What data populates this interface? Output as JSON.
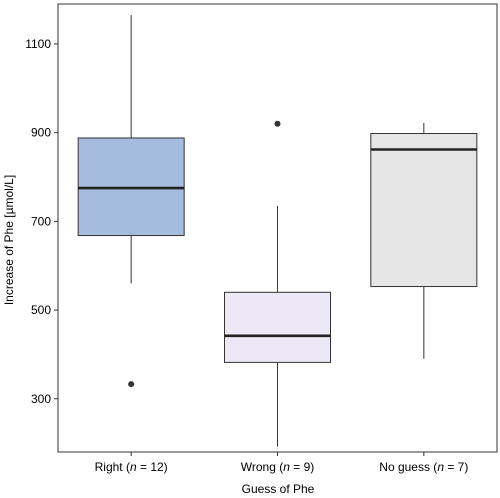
{
  "chart_data": {
    "type": "boxplot",
    "xlabel": "Guess of Phe",
    "ylabel": "Increase of Phe [µmol/L]",
    "ylim": [
      180,
      1190
    ],
    "yticks": [
      300,
      500,
      700,
      900,
      1100
    ],
    "grid": false,
    "categories": [
      {
        "name": "Right",
        "n_label": "n",
        "n_value": "= 12",
        "n": 12,
        "color": "#a5bcdf",
        "whisker_low": 560,
        "q1": 668,
        "median": 775,
        "q3": 888,
        "whisker_high": 1165,
        "outliers": [
          333
        ]
      },
      {
        "name": "Wrong",
        "n_label": "n",
        "n_value": "= 9",
        "n": 9,
        "color": "#ede8f5",
        "whisker_low": 192,
        "q1": 382,
        "median": 442,
        "q3": 540,
        "whisker_high": 735,
        "outliers": [
          920
        ]
      },
      {
        "name": "No guess",
        "n_label": "n",
        "n_value": "= 7",
        "n": 7,
        "color": "#e6e6e6",
        "whisker_low": 390,
        "q1": 553,
        "median": 862,
        "q3": 898,
        "whisker_high": 922,
        "outliers": []
      }
    ]
  }
}
